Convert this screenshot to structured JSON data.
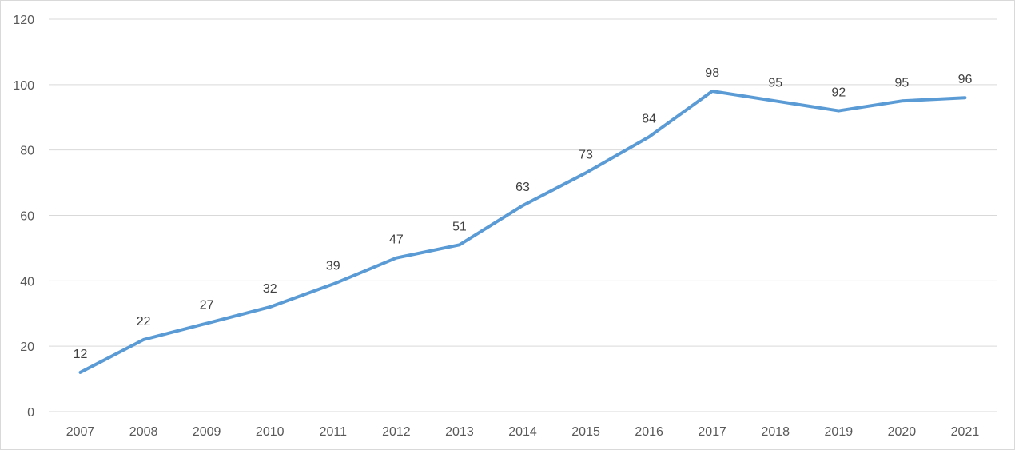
{
  "chart_data": {
    "type": "line",
    "title": "",
    "xlabel": "",
    "ylabel": "",
    "categories": [
      "2007",
      "2008",
      "2009",
      "2010",
      "2011",
      "2012",
      "2013",
      "2014",
      "2015",
      "2016",
      "2017",
      "2018",
      "2019",
      "2020",
      "2021"
    ],
    "series": [
      {
        "values": [
          12,
          22,
          27,
          32,
          39,
          47,
          51,
          63,
          73,
          84,
          98,
          95,
          92,
          95,
          96
        ],
        "color": "#5b9bd5"
      }
    ],
    "ylim": [
      0,
      120
    ],
    "yticks": [
      0,
      20,
      40,
      60,
      80,
      100,
      120
    ],
    "grid": true,
    "legend": "none",
    "data_labels": true
  }
}
